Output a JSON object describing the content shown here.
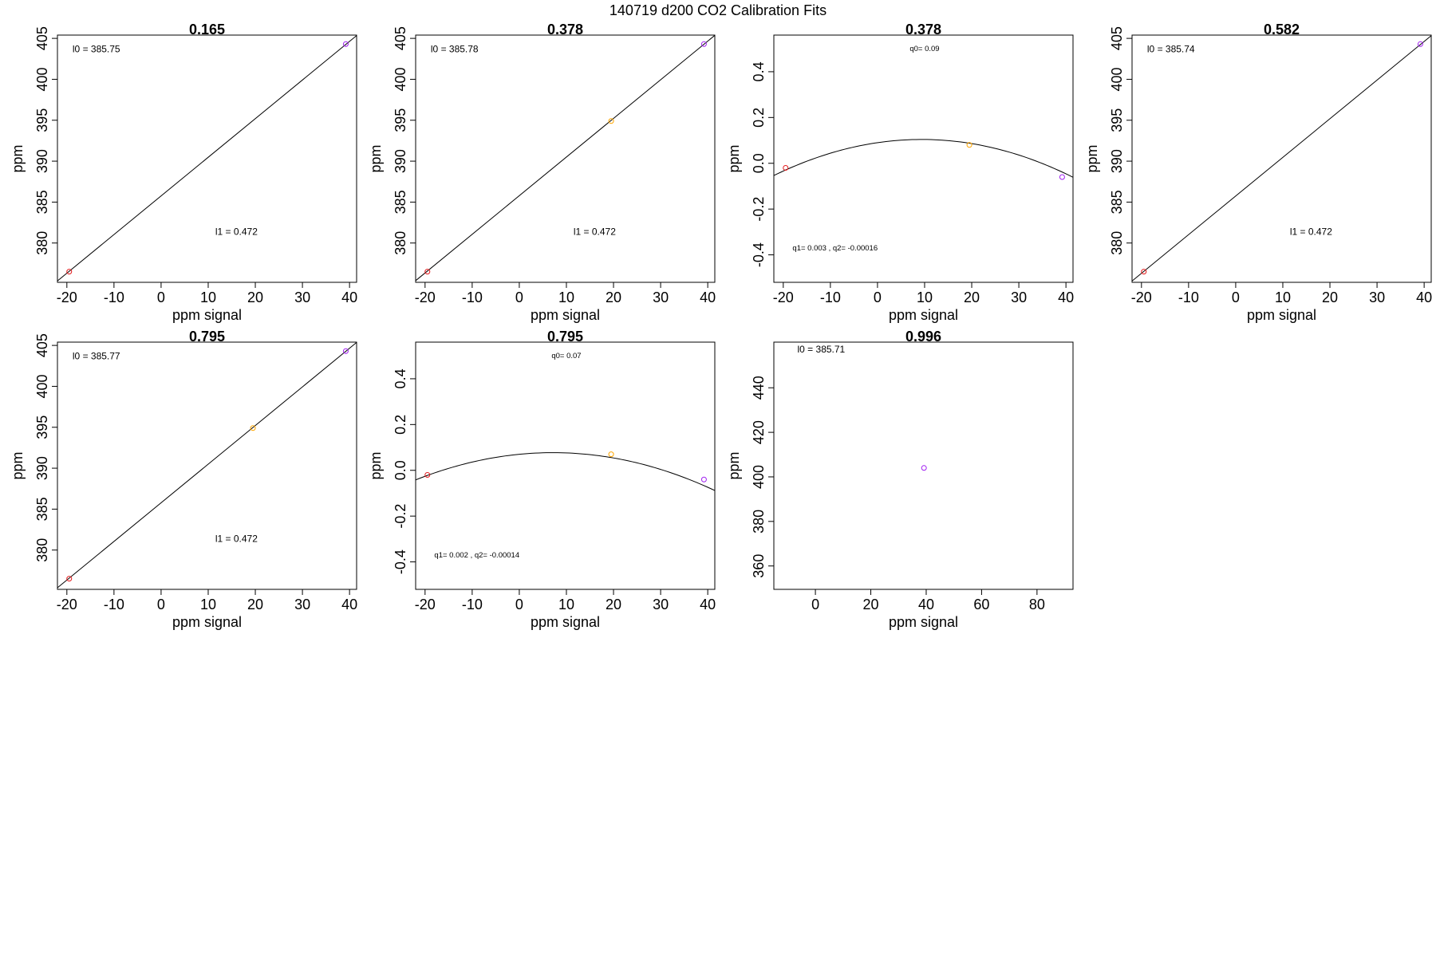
{
  "figure_title": "140719   d200   CO2 Calibration Fits",
  "chart_data": [
    {
      "type": "scatter",
      "fit": "linear",
      "title": "0.165",
      "xlabel": "ppm signal",
      "ylabel": "ppm",
      "xlim": [
        -22,
        41.5
      ],
      "ylim": [
        375.2,
        405.4
      ],
      "xticks": [
        -20,
        -10,
        0,
        10,
        20,
        30,
        40
      ],
      "yticks": [
        380,
        385,
        390,
        395,
        400,
        405
      ],
      "points": [
        {
          "x": -19.5,
          "y": 376.5,
          "color": "#e41a1c"
        },
        {
          "x": 39.2,
          "y": 404.3,
          "color": "#a01ff0"
        }
      ],
      "line": [
        [
          -22,
          375.37
        ],
        [
          41.5,
          405.34
        ]
      ],
      "annotations": [
        {
          "text": "l0 =  385.75",
          "x": -18.8,
          "y": 403.3,
          "size": "normal"
        },
        {
          "text": "l1 =  0.472",
          "x": 11.5,
          "y": 381.0,
          "size": "normal"
        }
      ]
    },
    {
      "type": "scatter",
      "fit": "linear",
      "title": "0.378",
      "xlabel": "ppm signal",
      "ylabel": "ppm",
      "xlim": [
        -22,
        41.5
      ],
      "ylim": [
        375.2,
        405.4
      ],
      "xticks": [
        -20,
        -10,
        0,
        10,
        20,
        30,
        40
      ],
      "yticks": [
        380,
        385,
        390,
        395,
        400,
        405
      ],
      "points": [
        {
          "x": -19.5,
          "y": 376.5,
          "color": "#e41a1c"
        },
        {
          "x": 19.5,
          "y": 394.9,
          "color": "#ffa500"
        },
        {
          "x": 39.2,
          "y": 404.3,
          "color": "#a01ff0"
        }
      ],
      "line": [
        [
          -22,
          375.4
        ],
        [
          41.5,
          405.37
        ]
      ],
      "annotations": [
        {
          "text": "l0 =  385.78",
          "x": -18.8,
          "y": 403.3,
          "size": "normal"
        },
        {
          "text": "l1 =  0.472",
          "x": 11.5,
          "y": 381.0,
          "size": "normal"
        }
      ]
    },
    {
      "type": "scatter",
      "fit": "quadratic",
      "title": "0.378",
      "xlabel": "ppm signal",
      "ylabel": "ppm",
      "xlim": [
        -22,
        41.5
      ],
      "ylim": [
        -0.52,
        0.56
      ],
      "xticks": [
        -20,
        -10,
        0,
        10,
        20,
        30,
        40
      ],
      "yticks": [
        -0.4,
        -0.2,
        0.0,
        0.2,
        0.4
      ],
      "ytick_labels": [
        "-0.4",
        "-0.2",
        "0.0",
        "0.2",
        "0.4"
      ],
      "points": [
        {
          "x": -19.5,
          "y": -0.02,
          "color": "#e41a1c"
        },
        {
          "x": 19.5,
          "y": 0.08,
          "color": "#ffa500"
        },
        {
          "x": 39.2,
          "y": -0.06,
          "color": "#a01ff0"
        }
      ],
      "curve": {
        "q0": 0.09,
        "q1": 0.003,
        "q2": -0.00016
      },
      "annotations": [
        {
          "text": "q0= 0.09",
          "x": 10,
          "y": 0.49,
          "size": "small"
        },
        {
          "text": "q1= 0.003 , q2= -0.00016",
          "x": -9,
          "y": -0.38,
          "size": "small"
        }
      ]
    },
    {
      "type": "scatter",
      "fit": "linear",
      "title": "0.582",
      "xlabel": "ppm signal",
      "ylabel": "ppm",
      "xlim": [
        -22,
        41.5
      ],
      "ylim": [
        375.2,
        405.4
      ],
      "xticks": [
        -20,
        -10,
        0,
        10,
        20,
        30,
        40
      ],
      "yticks": [
        380,
        385,
        390,
        395,
        400,
        405
      ],
      "points": [
        {
          "x": -19.5,
          "y": 376.5,
          "color": "#e41a1c"
        },
        {
          "x": 39.2,
          "y": 404.3,
          "color": "#a01ff0"
        }
      ],
      "line": [
        [
          -22,
          375.36
        ],
        [
          41.5,
          405.33
        ]
      ],
      "annotations": [
        {
          "text": "l0 =  385.74",
          "x": -18.8,
          "y": 403.3,
          "size": "normal"
        },
        {
          "text": "l1 =  0.472",
          "x": 11.5,
          "y": 381.0,
          "size": "normal"
        }
      ]
    },
    {
      "type": "scatter",
      "fit": "linear",
      "title": "0.795",
      "xlabel": "ppm signal",
      "ylabel": "ppm",
      "xlim": [
        -22,
        41.5
      ],
      "ylim": [
        375.2,
        405.4
      ],
      "xticks": [
        -20,
        -10,
        0,
        10,
        20,
        30,
        40
      ],
      "yticks": [
        380,
        385,
        390,
        395,
        400,
        405
      ],
      "points": [
        {
          "x": -19.5,
          "y": 376.5,
          "color": "#e41a1c"
        },
        {
          "x": 19.5,
          "y": 394.9,
          "color": "#ffa500"
        },
        {
          "x": 39.2,
          "y": 404.3,
          "color": "#a01ff0"
        }
      ],
      "line": [
        [
          -22,
          375.39
        ],
        [
          41.5,
          405.36
        ]
      ],
      "annotations": [
        {
          "text": "l0 =  385.77",
          "x": -18.8,
          "y": 403.3,
          "size": "normal"
        },
        {
          "text": "l1 =  0.472",
          "x": 11.5,
          "y": 381.0,
          "size": "normal"
        }
      ]
    },
    {
      "type": "scatter",
      "fit": "quadratic",
      "title": "0.795",
      "xlabel": "ppm signal",
      "ylabel": "ppm",
      "xlim": [
        -22,
        41.5
      ],
      "ylim": [
        -0.52,
        0.56
      ],
      "xticks": [
        -20,
        -10,
        0,
        10,
        20,
        30,
        40
      ],
      "yticks": [
        -0.4,
        -0.2,
        0.0,
        0.2,
        0.4
      ],
      "ytick_labels": [
        "-0.4",
        "-0.2",
        "0.0",
        "0.2",
        "0.4"
      ],
      "points": [
        {
          "x": -19.5,
          "y": -0.02,
          "color": "#e41a1c"
        },
        {
          "x": 19.5,
          "y": 0.07,
          "color": "#ffa500"
        },
        {
          "x": 39.2,
          "y": -0.04,
          "color": "#a01ff0"
        }
      ],
      "curve": {
        "q0": 0.07,
        "q1": 0.002,
        "q2": -0.00014
      },
      "annotations": [
        {
          "text": "q0= 0.07",
          "x": 10,
          "y": 0.49,
          "size": "small"
        },
        {
          "text": "q1= 0.002 , q2= -0.00014",
          "x": -9,
          "y": -0.38,
          "size": "small"
        }
      ]
    },
    {
      "type": "scatter",
      "fit": "none",
      "title": "0.996",
      "xlabel": "ppm signal",
      "ylabel": "ppm",
      "xlim": [
        -15,
        93
      ],
      "ylim": [
        349.5,
        460.5
      ],
      "xticks": [
        0,
        20,
        40,
        60,
        80
      ],
      "yticks": [
        360,
        380,
        400,
        420,
        440
      ],
      "points": [
        {
          "x": 39.2,
          "y": 404.0,
          "color": "#a01ff0"
        }
      ],
      "annotations": [
        {
          "text": "l0 =  385.71",
          "x": -6.5,
          "y": 455.8,
          "size": "normal"
        }
      ]
    }
  ]
}
